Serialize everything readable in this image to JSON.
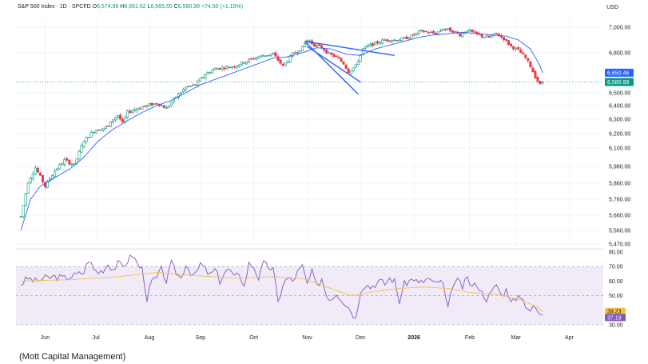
{
  "header": {
    "symbol": "S&P 500 Index · 1D · SPCFD",
    "open_label": "O",
    "open": "6,574.96",
    "high_label": "H",
    "high": "6,651.62",
    "low_label": "L",
    "low": "6,565.55",
    "close_label": "C",
    "close": "6,580.99",
    "change": "+74.50 (+1.15%)",
    "currency": "USD"
  },
  "caption": "(Mott Capital Management)",
  "colors": {
    "up": "#089981",
    "down": "#f23645",
    "ma": "#2962ff",
    "trend": "#2962ff",
    "rsi": "#7e57c2",
    "rsi_ma": "#f5c242",
    "rsi_band": "#ede7f6",
    "price_tag": "#089981",
    "ma_tag": "#2962ff"
  },
  "chart_data": [
    {
      "type": "candlestick",
      "title": "S&P 500 Index · 1D · SPCFD",
      "price_axis_ticks": [
        "7,000.00",
        "6,800.00",
        "6,500.00",
        "6,400.00",
        "6,300.00",
        "6,200.00",
        "6,100.00",
        "5,980.00",
        "5,860.00",
        "5,760.00",
        "5,660.00",
        "5,560.00",
        "5,470.00"
      ],
      "price_tick_values": [
        7000,
        6800,
        6500,
        6400,
        6300,
        6200,
        6100,
        5980,
        5860,
        5760,
        5660,
        5560,
        5470
      ],
      "x_axis_labels": [
        "Jun",
        "Jul",
        "Aug",
        "Sep",
        "Oct",
        "Nov",
        "Dec",
        "2026",
        "Feb",
        "Mar",
        "Apr"
      ],
      "x_label_days": [
        10,
        31,
        53,
        74,
        96,
        118,
        140,
        162,
        185,
        204,
        226
      ],
      "last_price_label": "6,580.99",
      "ma_label": "6,650.46",
      "last_price": 6580.99,
      "ma_value": 6650.46,
      "anchors": [
        [
          0,
          5650
        ],
        [
          3,
          5870
        ],
        [
          6,
          5970
        ],
        [
          10,
          5840
        ],
        [
          14,
          5950
        ],
        [
          18,
          6020
        ],
        [
          22,
          5990
        ],
        [
          26,
          6150
        ],
        [
          30,
          6220
        ],
        [
          34,
          6240
        ],
        [
          36,
          6250
        ],
        [
          38,
          6300
        ],
        [
          40,
          6330
        ],
        [
          42,
          6270
        ],
        [
          44,
          6350
        ],
        [
          48,
          6380
        ],
        [
          52,
          6400
        ],
        [
          56,
          6420
        ],
        [
          60,
          6380
        ],
        [
          64,
          6470
        ],
        [
          68,
          6540
        ],
        [
          72,
          6560
        ],
        [
          76,
          6640
        ],
        [
          80,
          6680
        ],
        [
          84,
          6690
        ],
        [
          88,
          6700
        ],
        [
          92,
          6730
        ],
        [
          96,
          6760
        ],
        [
          100,
          6780
        ],
        [
          104,
          6790
        ],
        [
          108,
          6700
        ],
        [
          112,
          6790
        ],
        [
          116,
          6840
        ],
        [
          118,
          6900
        ],
        [
          121,
          6860
        ],
        [
          124,
          6840
        ],
        [
          127,
          6790
        ],
        [
          130,
          6770
        ],
        [
          133,
          6720
        ],
        [
          135,
          6660
        ],
        [
          138,
          6700
        ],
        [
          141,
          6830
        ],
        [
          144,
          6860
        ],
        [
          147,
          6880
        ],
        [
          150,
          6900
        ],
        [
          154,
          6900
        ],
        [
          158,
          6910
        ],
        [
          162,
          6940
        ],
        [
          165,
          6970
        ],
        [
          168,
          6960
        ],
        [
          171,
          6950
        ],
        [
          174,
          6990
        ],
        [
          178,
          6970
        ],
        [
          181,
          6940
        ],
        [
          184,
          6980
        ],
        [
          187,
          6950
        ],
        [
          190,
          6930
        ],
        [
          193,
          6920
        ],
        [
          196,
          6950
        ],
        [
          199,
          6910
        ],
        [
          202,
          6850
        ],
        [
          205,
          6820
        ],
        [
          208,
          6760
        ],
        [
          210,
          6700
        ],
        [
          212,
          6620
        ],
        [
          214,
          6560
        ],
        [
          215,
          6581
        ]
      ],
      "moving_average_anchors": [
        [
          0,
          5560
        ],
        [
          4,
          5760
        ],
        [
          8,
          5840
        ],
        [
          14,
          5900
        ],
        [
          20,
          5960
        ],
        [
          26,
          6040
        ],
        [
          32,
          6150
        ],
        [
          38,
          6230
        ],
        [
          44,
          6290
        ],
        [
          50,
          6350
        ],
        [
          56,
          6400
        ],
        [
          62,
          6440
        ],
        [
          68,
          6500
        ],
        [
          74,
          6560
        ],
        [
          80,
          6600
        ],
        [
          86,
          6640
        ],
        [
          92,
          6680
        ],
        [
          98,
          6720
        ],
        [
          104,
          6760
        ],
        [
          110,
          6770
        ],
        [
          116,
          6800
        ],
        [
          122,
          6840
        ],
        [
          128,
          6830
        ],
        [
          134,
          6790
        ],
        [
          140,
          6780
        ],
        [
          146,
          6830
        ],
        [
          152,
          6860
        ],
        [
          158,
          6890
        ],
        [
          164,
          6920
        ],
        [
          170,
          6940
        ],
        [
          176,
          6950
        ],
        [
          182,
          6960
        ],
        [
          188,
          6950
        ],
        [
          194,
          6940
        ],
        [
          200,
          6930
        ],
        [
          205,
          6900
        ],
        [
          210,
          6830
        ],
        [
          214,
          6700
        ],
        [
          215,
          6650
        ]
      ],
      "trendlines": [
        {
          "from": [
            117,
            6890
          ],
          "to": [
            154,
            6780
          ]
        },
        {
          "from": [
            117,
            6890
          ],
          "to": [
            139,
            6490
          ]
        },
        {
          "from": [
            118,
            6850
          ],
          "to": [
            140,
            6580
          ]
        }
      ]
    },
    {
      "type": "line",
      "title": "RSI",
      "y_axis_ticks": [
        "80.00",
        "70.00",
        "60.00",
        "50.00",
        "30.00"
      ],
      "y_tick_values": [
        80,
        70,
        60,
        50,
        30
      ],
      "ylim": [
        30,
        80
      ],
      "bands": [
        70,
        30
      ],
      "rsi_label": "37.19",
      "rsi_ma_label": "39.23",
      "rsi_value": 37.19,
      "rsi_ma_value": 39.23,
      "rsi_anchors": [
        [
          0,
          58
        ],
        [
          3,
          62
        ],
        [
          6,
          60
        ],
        [
          10,
          62
        ],
        [
          14,
          63
        ],
        [
          18,
          62
        ],
        [
          22,
          64
        ],
        [
          26,
          66
        ],
        [
          28,
          75
        ],
        [
          30,
          68
        ],
        [
          32,
          66
        ],
        [
          34,
          68
        ],
        [
          36,
          72
        ],
        [
          38,
          68
        ],
        [
          40,
          72
        ],
        [
          42,
          70
        ],
        [
          44,
          74
        ],
        [
          46,
          78
        ],
        [
          48,
          72
        ],
        [
          50,
          68
        ],
        [
          52,
          48
        ],
        [
          54,
          60
        ],
        [
          56,
          62
        ],
        [
          58,
          68
        ],
        [
          60,
          60
        ],
        [
          62,
          72
        ],
        [
          64,
          66
        ],
        [
          66,
          62
        ],
        [
          68,
          72
        ],
        [
          70,
          66
        ],
        [
          72,
          64
        ],
        [
          74,
          72
        ],
        [
          76,
          68
        ],
        [
          78,
          64
        ],
        [
          80,
          68
        ],
        [
          82,
          60
        ],
        [
          84,
          66
        ],
        [
          86,
          68
        ],
        [
          88,
          62
        ],
        [
          90,
          66
        ],
        [
          92,
          56
        ],
        [
          94,
          72
        ],
        [
          96,
          70
        ],
        [
          98,
          62
        ],
        [
          100,
          72
        ],
        [
          104,
          68
        ],
        [
          106,
          45
        ],
        [
          108,
          58
        ],
        [
          110,
          62
        ],
        [
          112,
          60
        ],
        [
          114,
          66
        ],
        [
          116,
          70
        ],
        [
          118,
          58
        ],
        [
          120,
          66
        ],
        [
          122,
          56
        ],
        [
          124,
          62
        ],
        [
          126,
          50
        ],
        [
          128,
          48
        ],
        [
          130,
          52
        ],
        [
          134,
          44
        ],
        [
          136,
          40
        ],
        [
          138,
          34
        ],
        [
          140,
          54
        ],
        [
          142,
          58
        ],
        [
          144,
          56
        ],
        [
          146,
          58
        ],
        [
          148,
          60
        ],
        [
          150,
          58
        ],
        [
          152,
          62
        ],
        [
          154,
          60
        ],
        [
          156,
          46
        ],
        [
          158,
          58
        ],
        [
          160,
          60
        ],
        [
          162,
          62
        ],
        [
          164,
          58
        ],
        [
          166,
          60
        ],
        [
          168,
          62
        ],
        [
          170,
          58
        ],
        [
          172,
          60
        ],
        [
          174,
          58
        ],
        [
          176,
          40
        ],
        [
          178,
          58
        ],
        [
          180,
          60
        ],
        [
          182,
          56
        ],
        [
          184,
          62
        ],
        [
          186,
          56
        ],
        [
          188,
          58
        ],
        [
          190,
          52
        ],
        [
          192,
          48
        ],
        [
          194,
          52
        ],
        [
          196,
          58
        ],
        [
          198,
          50
        ],
        [
          200,
          54
        ],
        [
          202,
          48
        ],
        [
          204,
          46
        ],
        [
          206,
          50
        ],
        [
          208,
          44
        ],
        [
          210,
          40
        ],
        [
          212,
          42
        ],
        [
          214,
          36
        ],
        [
          215,
          37
        ]
      ],
      "rsi_ma_anchors": [
        [
          0,
          60
        ],
        [
          20,
          61
        ],
        [
          40,
          63
        ],
        [
          56,
          66
        ],
        [
          70,
          64
        ],
        [
          90,
          62
        ],
        [
          104,
          63
        ],
        [
          116,
          62
        ],
        [
          126,
          56
        ],
        [
          136,
          50
        ],
        [
          146,
          53
        ],
        [
          156,
          55
        ],
        [
          166,
          56
        ],
        [
          176,
          55
        ],
        [
          186,
          52
        ],
        [
          196,
          51
        ],
        [
          206,
          47
        ],
        [
          212,
          43
        ],
        [
          215,
          39
        ]
      ]
    }
  ]
}
